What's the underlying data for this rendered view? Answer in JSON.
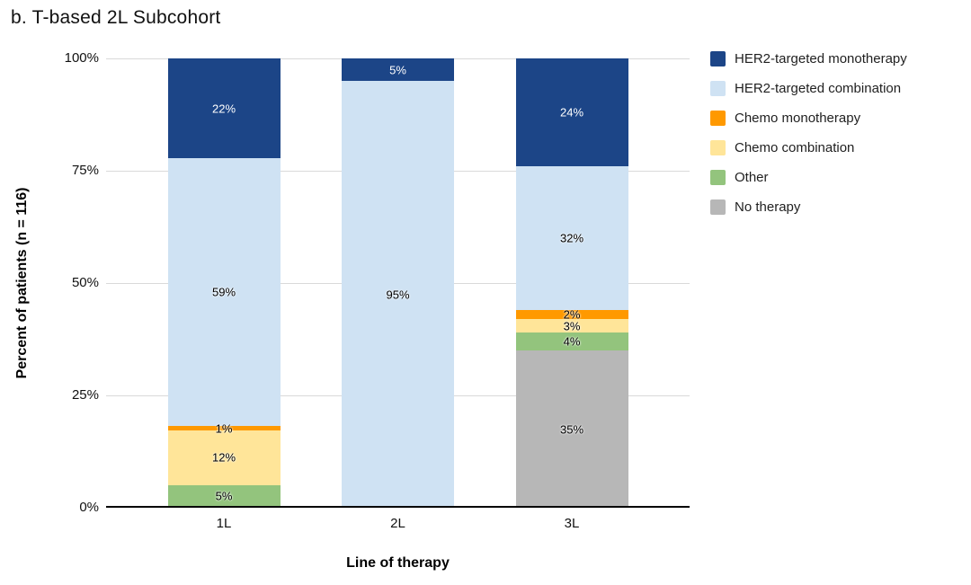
{
  "chart_data": {
    "type": "bar",
    "stacked": true,
    "title": "b. T-based 2L Subcohort",
    "xlabel": "Line of therapy",
    "ylabel": "Percent of patients (n = 116)",
    "ylim": [
      0,
      100
    ],
    "grid": true,
    "legend_position": "right",
    "y_ticks": [
      "0%",
      "25%",
      "50%",
      "75%",
      "100%"
    ],
    "categories": [
      "1L",
      "2L",
      "3L"
    ],
    "label_suffix": "%",
    "series": [
      {
        "name": "HER2-targeted monotherapy",
        "color": "#1c4587",
        "values": [
          22,
          5,
          24
        ]
      },
      {
        "name": "HER2-targeted combination",
        "color": "#cfe2f3",
        "values": [
          59,
          95,
          32
        ]
      },
      {
        "name": "Chemo monotherapy",
        "color": "#ff9900",
        "values": [
          1,
          0,
          2
        ]
      },
      {
        "name": "Chemo combination",
        "color": "#ffe599",
        "values": [
          12,
          0,
          3
        ]
      },
      {
        "name": "Other",
        "color": "#93c47d",
        "values": [
          5,
          0,
          4
        ]
      },
      {
        "name": "No therapy",
        "color": "#b7b7b7",
        "values": [
          0,
          0,
          35
        ]
      }
    ]
  }
}
